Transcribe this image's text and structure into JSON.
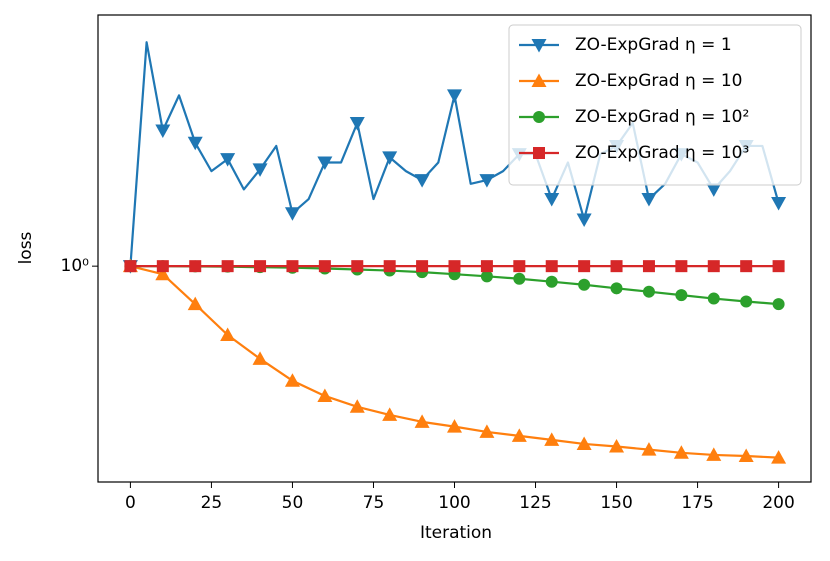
{
  "chart_data": {
    "type": "line",
    "xlabel": "Iteration",
    "ylabel": "loss",
    "xlim": [
      -10,
      210
    ],
    "xticks": [
      0,
      25,
      50,
      75,
      100,
      125,
      150,
      175,
      200
    ],
    "ylim": [
      0.43,
      2.67
    ],
    "yticks": [
      {
        "value": 1,
        "label": "10⁰"
      }
    ],
    "yscale": "log",
    "legend": "upper right",
    "series": [
      {
        "name": "ZO-ExpGrad η = 1",
        "color": "#1f77b4",
        "marker": "triangle-down",
        "x": [
          0,
          5,
          10,
          15,
          20,
          25,
          30,
          35,
          40,
          45,
          50,
          55,
          60,
          65,
          70,
          75,
          80,
          85,
          90,
          95,
          100,
          105,
          110,
          115,
          120,
          125,
          130,
          135,
          140,
          145,
          150,
          155,
          160,
          165,
          170,
          175,
          180,
          185,
          190,
          195,
          200
        ],
        "values": [
          1.0,
          2.4,
          1.7,
          1.95,
          1.62,
          1.45,
          1.52,
          1.35,
          1.46,
          1.6,
          1.23,
          1.3,
          1.5,
          1.5,
          1.75,
          1.3,
          1.53,
          1.45,
          1.4,
          1.5,
          1.95,
          1.38,
          1.4,
          1.45,
          1.55,
          1.55,
          1.3,
          1.5,
          1.2,
          1.55,
          1.6,
          1.75,
          1.3,
          1.38,
          1.55,
          1.5,
          1.35,
          1.45,
          1.6,
          1.6,
          1.28
        ]
      },
      {
        "name": "ZO-ExpGrad η = 10",
        "color": "#ff7f0e",
        "marker": "triangle-up",
        "x": [
          0,
          10,
          20,
          30,
          40,
          50,
          60,
          70,
          80,
          90,
          100,
          110,
          120,
          130,
          140,
          150,
          160,
          170,
          180,
          190,
          200
        ],
        "values": [
          1.0,
          0.969,
          0.862,
          0.764,
          0.696,
          0.639,
          0.602,
          0.577,
          0.559,
          0.544,
          0.534,
          0.523,
          0.515,
          0.507,
          0.499,
          0.494,
          0.488,
          0.482,
          0.478,
          0.476,
          0.473
        ]
      },
      {
        "name": "ZO-ExpGrad η = 10²",
        "color": "#2ca02c",
        "marker": "circle",
        "x": [
          0,
          10,
          20,
          30,
          40,
          50,
          60,
          70,
          80,
          90,
          100,
          110,
          120,
          130,
          140,
          150,
          160,
          170,
          180,
          190,
          200
        ],
        "values": [
          1.0,
          1.0,
          0.999,
          0.998,
          0.996,
          0.994,
          0.991,
          0.987,
          0.983,
          0.977,
          0.969,
          0.961,
          0.952,
          0.941,
          0.93,
          0.917,
          0.905,
          0.893,
          0.881,
          0.871,
          0.862
        ]
      },
      {
        "name": "ZO-ExpGrad η = 10³",
        "color": "#d62728",
        "marker": "square",
        "x": [
          0,
          10,
          20,
          30,
          40,
          50,
          60,
          70,
          80,
          90,
          100,
          110,
          120,
          130,
          140,
          150,
          160,
          170,
          180,
          190,
          200
        ],
        "values": [
          1,
          1,
          1,
          1,
          1,
          1,
          1,
          1,
          1,
          1,
          1,
          1,
          1,
          1,
          1,
          1,
          1,
          1,
          1,
          1,
          1
        ]
      }
    ]
  }
}
